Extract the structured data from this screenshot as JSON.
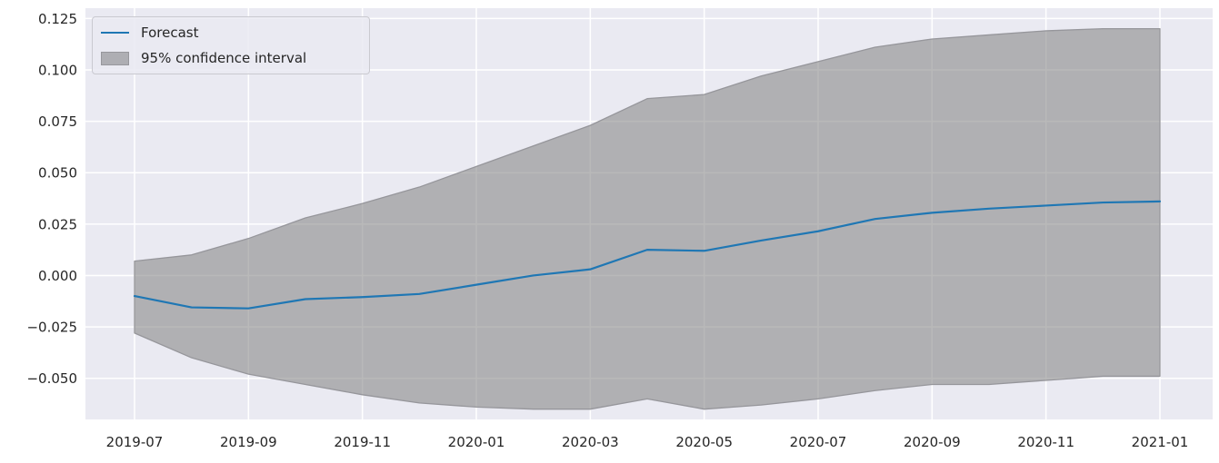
{
  "chart_data": {
    "type": "line",
    "title": "",
    "xlabel": "",
    "ylabel": "",
    "grid": true,
    "legend_position": "upper left",
    "legend": [
      "Forecast",
      "95% confidence interval"
    ],
    "x": [
      "2019-07",
      "2019-08",
      "2019-09",
      "2019-10",
      "2019-11",
      "2019-12",
      "2020-01",
      "2020-02",
      "2020-03",
      "2020-04",
      "2020-05",
      "2020-06",
      "2020-07",
      "2020-08",
      "2020-09",
      "2020-10",
      "2020-11",
      "2020-12",
      "2021-01"
    ],
    "series": [
      {
        "name": "Forecast",
        "color": "#1f77b4",
        "values": [
          -0.01,
          -0.0155,
          -0.016,
          -0.0115,
          -0.0105,
          -0.009,
          -0.0045,
          0.0,
          0.003,
          0.0125,
          0.012,
          0.017,
          0.0215,
          0.0275,
          0.0305,
          0.0325,
          0.034,
          0.0355,
          0.036
        ]
      }
    ],
    "band": {
      "name": "95% confidence interval",
      "upper": [
        0.007,
        0.01,
        0.018,
        0.028,
        0.035,
        0.043,
        0.053,
        0.063,
        0.073,
        0.086,
        0.088,
        0.097,
        0.104,
        0.111,
        0.115,
        0.117,
        0.119,
        0.12,
        0.12
      ],
      "lower": [
        -0.028,
        -0.04,
        -0.048,
        -0.053,
        -0.058,
        -0.062,
        -0.064,
        -0.065,
        -0.065,
        -0.06,
        -0.065,
        -0.063,
        -0.06,
        -0.056,
        -0.053,
        -0.053,
        -0.051,
        -0.049,
        -0.049
      ]
    },
    "xticks": [
      "2019-07",
      "2019-09",
      "2019-11",
      "2020-01",
      "2020-03",
      "2020-05",
      "2020-07",
      "2020-09",
      "2020-11",
      "2021-01"
    ],
    "yticks": [
      "0.125",
      "0.100",
      "0.075",
      "0.050",
      "0.025",
      "0.000",
      "−0.025",
      "−0.050"
    ],
    "ytick_values": [
      0.125,
      0.1,
      0.075,
      0.05,
      0.025,
      0.0,
      -0.025,
      -0.05
    ],
    "ylim": [
      -0.07,
      0.13
    ],
    "colors": {
      "axes_background": "#eaeaf2",
      "grid": "#ffffff",
      "forecast_line": "#1f77b4",
      "band_fill": "#808080",
      "band_fill_opacity": 0.55,
      "band_edge": "#96969b",
      "tick_text": "#262626"
    }
  }
}
